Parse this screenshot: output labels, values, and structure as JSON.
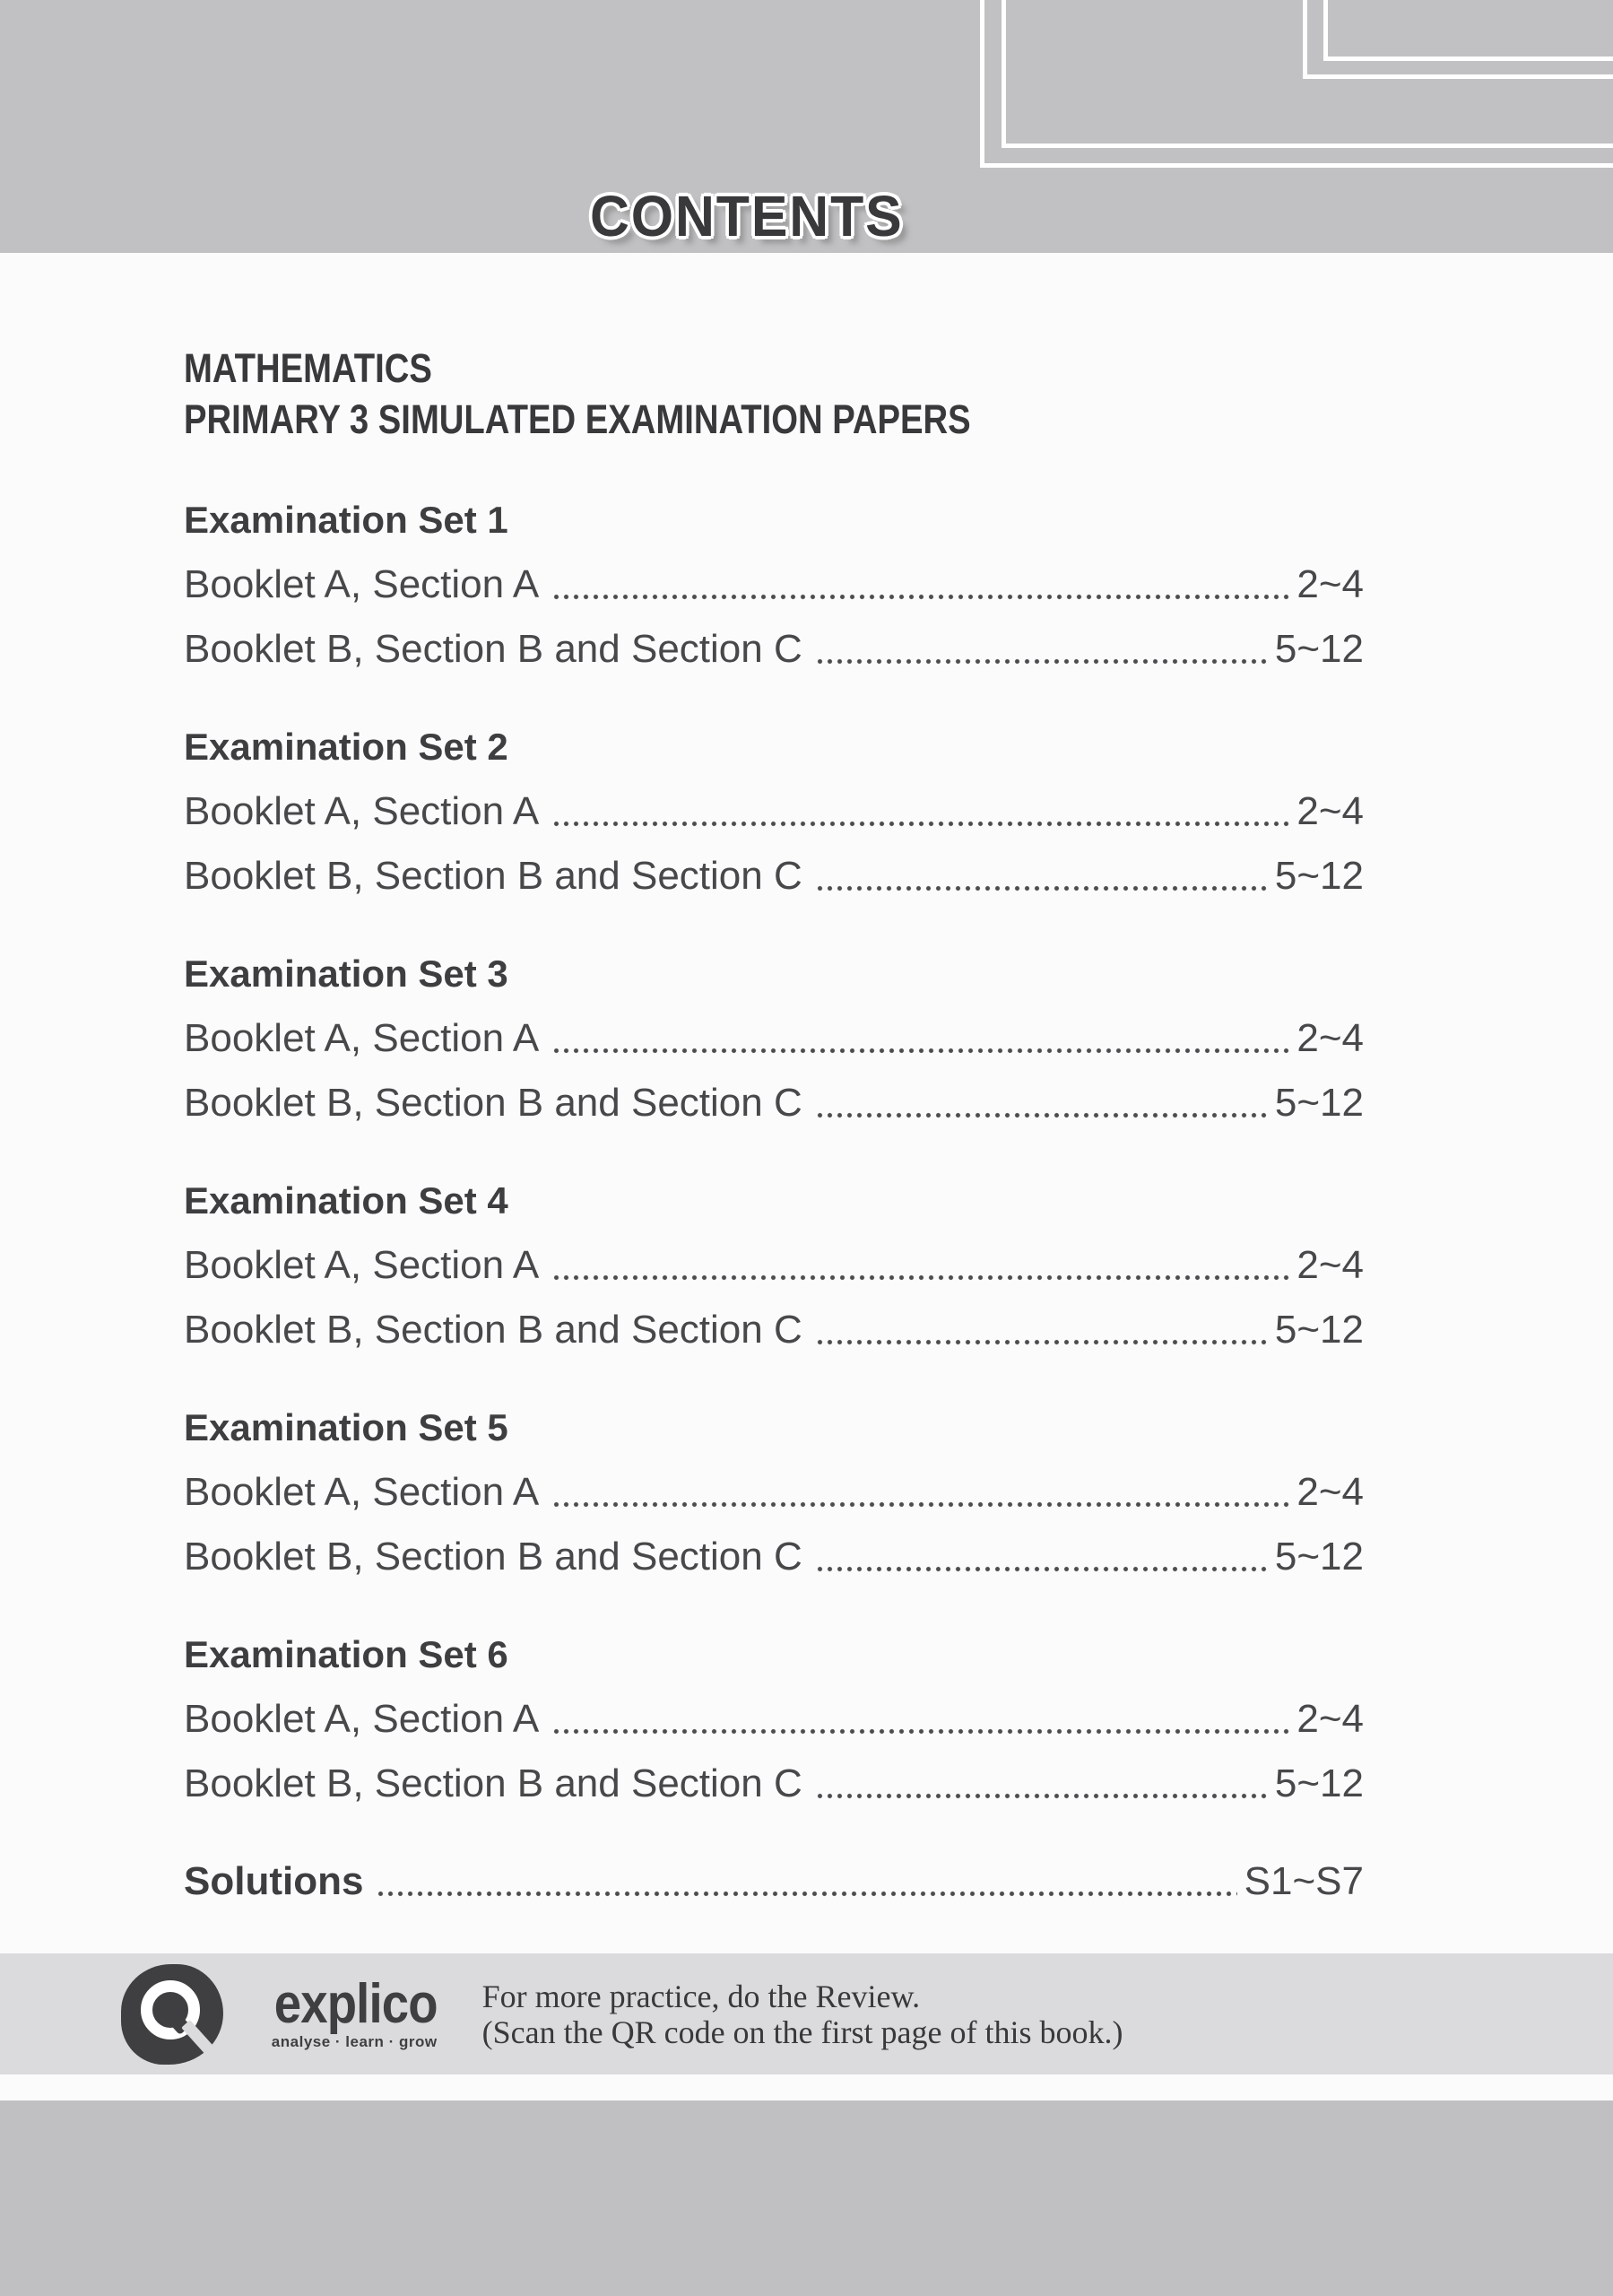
{
  "header": {
    "title": "CONTENTS"
  },
  "doc": {
    "title_line1": "MATHEMATICS",
    "title_line2": "PRIMARY 3 SIMULATED EXAMINATION PAPERS"
  },
  "toc": {
    "sets": [
      {
        "heading": "Examination Set 1",
        "entries": [
          {
            "label": "Booklet A, Section A",
            "pages": "2~4"
          },
          {
            "label": "Booklet B, Section B and Section C",
            "pages": "5~12"
          }
        ]
      },
      {
        "heading": "Examination Set 2",
        "entries": [
          {
            "label": "Booklet A, Section A",
            "pages": "2~4"
          },
          {
            "label": "Booklet B, Section B and Section C",
            "pages": "5~12"
          }
        ]
      },
      {
        "heading": "Examination Set 3",
        "entries": [
          {
            "label": "Booklet A, Section A",
            "pages": "2~4"
          },
          {
            "label": "Booklet B, Section B and Section C",
            "pages": "5~12"
          }
        ]
      },
      {
        "heading": "Examination Set 4",
        "entries": [
          {
            "label": "Booklet A, Section A",
            "pages": "2~4"
          },
          {
            "label": "Booklet B, Section B and Section C",
            "pages": "5~12"
          }
        ]
      },
      {
        "heading": "Examination Set 5",
        "entries": [
          {
            "label": "Booklet A, Section A",
            "pages": "2~4"
          },
          {
            "label": "Booklet B, Section B and Section C",
            "pages": "5~12"
          }
        ]
      },
      {
        "heading": "Examination Set 6",
        "entries": [
          {
            "label": "Booklet A, Section A",
            "pages": "2~4"
          },
          {
            "label": "Booklet B, Section B and Section C",
            "pages": "5~12"
          }
        ]
      }
    ],
    "solutions": {
      "label": "Solutions",
      "pages": "S1~S7"
    }
  },
  "footer": {
    "brand": "explico",
    "tagline": "analyse · learn · grow",
    "note_line1": "For more practice, do the Review.",
    "note_line2": "(Scan the QR code on the first page of this book.)"
  },
  "colors": {
    "header_gray": "#c1c1c3",
    "footer_band_gray": "#dbdbdd",
    "bottom_band_gray": "#c0c0c2",
    "text_dark": "#3e3e40",
    "text_body": "#48484a"
  }
}
